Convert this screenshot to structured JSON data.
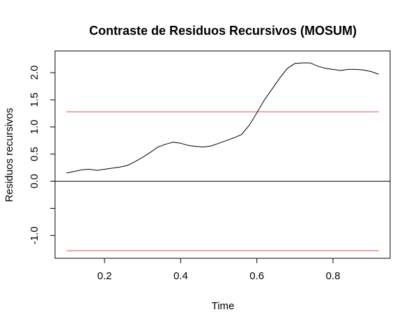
{
  "chart_data": {
    "type": "line",
    "title": "Contraste de Residuos Recursivos (MOSUM)",
    "xlabel": "Time",
    "ylabel": "Residuos recursivos",
    "xlim": [
      0.07,
      0.95
    ],
    "ylim": [
      -1.42,
      2.4
    ],
    "x_ticks": [
      0.2,
      0.4,
      0.6,
      0.8
    ],
    "x_tick_labels": [
      "0.2",
      "0.4",
      "0.6",
      "0.8"
    ],
    "y_ticks": [
      -1.0,
      -0.5,
      0.0,
      0.5,
      1.0,
      1.5,
      2.0
    ],
    "y_tick_labels": [
      "-1.0",
      "",
      "0.0",
      "0.5",
      "1.0",
      "1.5",
      "2.0"
    ],
    "grid": false,
    "colors": {
      "series": "#000000",
      "boundary": "#d9534f",
      "reference": "#000000"
    },
    "series": [
      {
        "x": [
          0.1,
          0.12,
          0.14,
          0.16,
          0.18,
          0.2,
          0.22,
          0.24,
          0.26,
          0.28,
          0.3,
          0.32,
          0.34,
          0.36,
          0.38,
          0.4,
          0.42,
          0.44,
          0.46,
          0.48,
          0.5,
          0.52,
          0.54,
          0.56,
          0.58,
          0.6,
          0.62,
          0.64,
          0.66,
          0.68,
          0.7,
          0.72,
          0.74,
          0.76,
          0.78,
          0.8,
          0.82,
          0.84,
          0.86,
          0.88,
          0.9,
          0.92
        ],
        "y": [
          0.15,
          0.18,
          0.21,
          0.22,
          0.2,
          0.22,
          0.24,
          0.26,
          0.29,
          0.36,
          0.44,
          0.53,
          0.63,
          0.68,
          0.72,
          0.7,
          0.66,
          0.64,
          0.63,
          0.65,
          0.7,
          0.75,
          0.8,
          0.86,
          1.03,
          1.26,
          1.5,
          1.7,
          1.9,
          2.08,
          2.17,
          2.18,
          2.18,
          2.12,
          2.08,
          2.06,
          2.04,
          2.06,
          2.06,
          2.05,
          2.02,
          1.97
        ]
      }
    ],
    "reference_lines": [
      {
        "y": 1.28,
        "x": [
          0.1,
          0.92
        ]
      },
      {
        "y": -1.28,
        "x": [
          0.1,
          0.92
        ]
      },
      {
        "y": 0.0
      }
    ]
  }
}
